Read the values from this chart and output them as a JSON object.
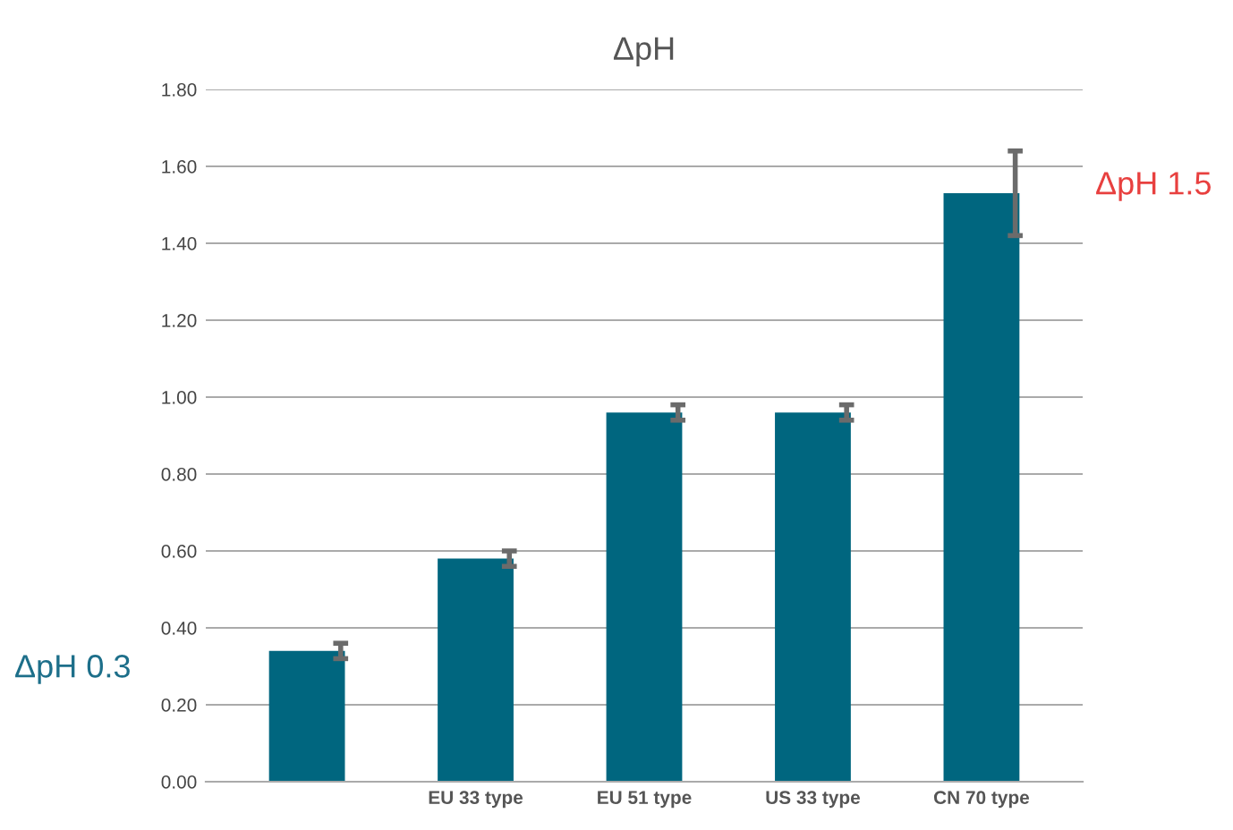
{
  "chart_data": {
    "type": "bar",
    "title": "ΔpH",
    "categories": [
      null,
      "EU 33 type",
      "EU 51 type",
      "US 33 type",
      "CN 70 type"
    ],
    "values": [
      0.34,
      0.58,
      0.96,
      0.96,
      1.53
    ],
    "errors": [
      0.02,
      0.02,
      0.02,
      0.02,
      0.11
    ],
    "color": "#00667f",
    "ylim": [
      0,
      1.8
    ],
    "yticks": [
      {
        "value": 0,
        "label": "0.00"
      },
      {
        "value": 0.2,
        "label": "0.20"
      },
      {
        "value": 0.4,
        "label": "0.40"
      },
      {
        "value": 0.6,
        "label": "0.60"
      },
      {
        "value": 0.8,
        "label": "0.80"
      },
      {
        "value": 1.0,
        "label": "1.00"
      },
      {
        "value": 1.2,
        "label": "1.20"
      },
      {
        "value": 1.4,
        "label": "1.40"
      },
      {
        "value": 1.6,
        "label": "1.60"
      },
      {
        "value": 1.8,
        "label": "1.80"
      }
    ],
    "grid": "y",
    "annotations": [
      "ΔpH 0.3",
      "ΔpH 1.5"
    ]
  }
}
